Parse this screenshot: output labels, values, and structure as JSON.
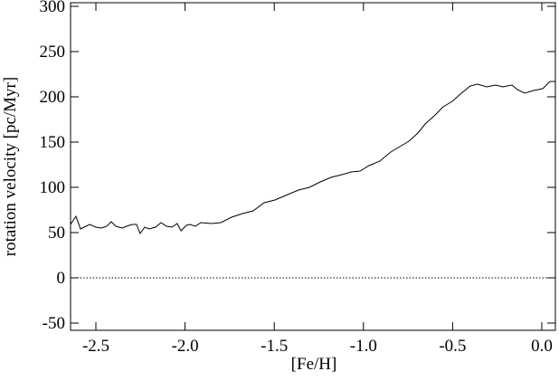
{
  "chart_data": {
    "type": "line",
    "x_label": "[Fe/H]",
    "y_label": "rotation velocity [pc/Myr]",
    "xlim": [
      -2.642,
      0.076
    ],
    "ylim": [
      -58,
      304
    ],
    "xticks": [
      -2.5,
      {
        "value": -2.0,
        "label": "-2.0"
      },
      -1.5,
      {
        "value": -1.0,
        "label": "-1.0"
      },
      -0.5,
      {
        "value": 0.0,
        "label": "0.0"
      }
    ],
    "yticks": [
      -50,
      0,
      50,
      100,
      150,
      200,
      250,
      300
    ],
    "reference_line": {
      "y": 0,
      "style": "dotted"
    },
    "series": [
      {
        "color": "#000000",
        "x": [
          -2.642,
          -2.612,
          -2.586,
          -2.535,
          -2.5,
          -2.47,
          -2.439,
          -2.414,
          -2.388,
          -2.353,
          -2.328,
          -2.297,
          -2.272,
          -2.252,
          -2.226,
          -2.201,
          -2.165,
          -2.135,
          -2.104,
          -2.074,
          -2.044,
          -2.023,
          -1.993,
          -1.973,
          -1.942,
          -1.912,
          -1.851,
          -1.8,
          -1.739,
          -1.678,
          -1.618,
          -1.557,
          -1.496,
          -1.425,
          -1.364,
          -1.303,
          -1.242,
          -1.182,
          -1.121,
          -1.07,
          -1.019,
          -0.969,
          -0.908,
          -0.847,
          -0.796,
          -0.745,
          -0.695,
          -0.654,
          -0.603,
          -0.553,
          -0.502,
          -0.451,
          -0.401,
          -0.36,
          -0.309,
          -0.259,
          -0.218,
          -0.167,
          -0.137,
          -0.096,
          -0.046,
          0.005,
          0.046,
          0.076
        ],
        "values": [
          59,
          68,
          54,
          59,
          56,
          55,
          57,
          62,
          57,
          55,
          57,
          59,
          59,
          49,
          56,
          54,
          56,
          61,
          57,
          56,
          60,
          52,
          58,
          59,
          57,
          61,
          60,
          61,
          67,
          71,
          74,
          83,
          86,
          92,
          97,
          100,
          106,
          111,
          114,
          117,
          118,
          124,
          129,
          139,
          145,
          151,
          160,
          170,
          179,
          189,
          195,
          204,
          212,
          214,
          211,
          213,
          211,
          213,
          208,
          204,
          207,
          209,
          217,
          217
        ]
      }
    ]
  }
}
